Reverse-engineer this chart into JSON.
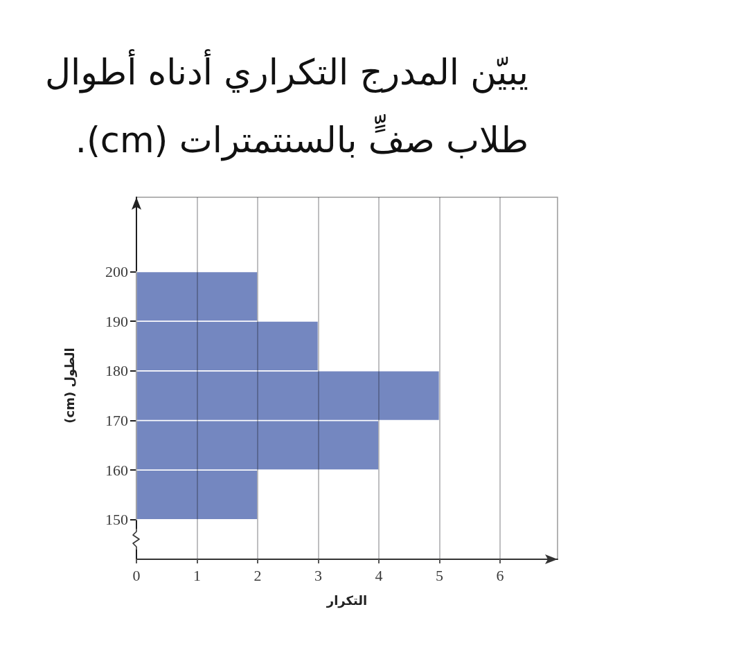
{
  "chart_data": {
    "type": "histogram",
    "orientation": "horizontal",
    "title": "يبيّن المدرج التكراري أدناه أطوال طلاب صفٍّ بالسنتمترات (cm).",
    "xlabel": "التكرار",
    "ylabel": "الطول (cm)",
    "bins": [
      150,
      160,
      170,
      180,
      190,
      200
    ],
    "values": [
      2,
      4,
      5,
      3,
      2
    ],
    "color": "#7487c0",
    "xlim": [
      0,
      6.95
    ],
    "xticks": [
      0,
      1,
      2,
      3,
      4,
      5,
      6
    ],
    "ylim": [
      142,
      215
    ],
    "yticks": [
      150,
      160,
      170,
      180,
      190,
      200
    ],
    "grid": "x"
  }
}
